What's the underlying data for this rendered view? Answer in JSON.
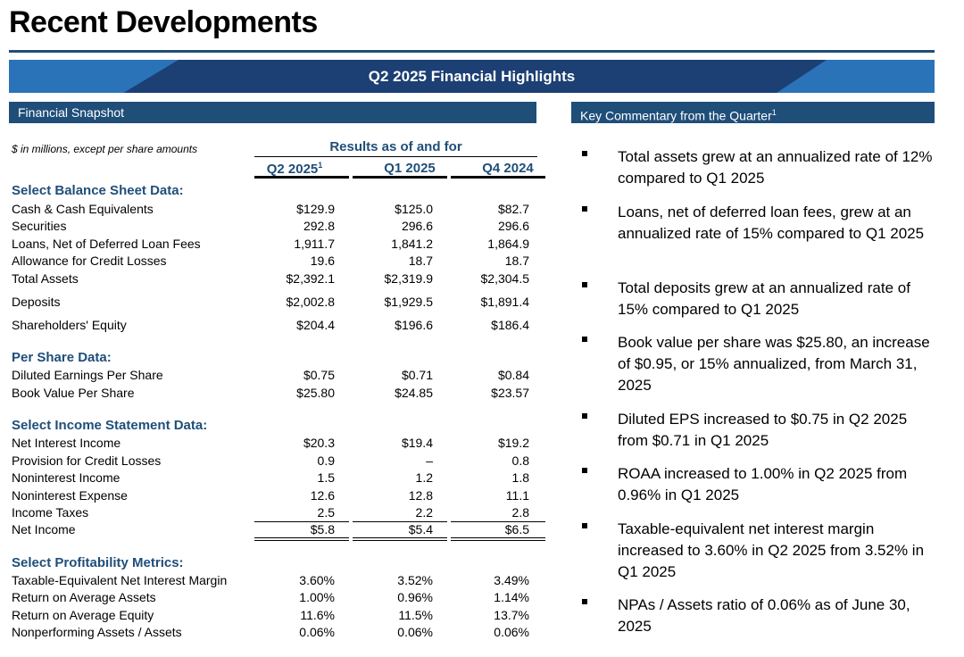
{
  "title": "Recent Developments",
  "banner": "Q2 2025 Financial Highlights",
  "snapshot_header": "Financial Snapshot",
  "commentary_header": "Key Commentary from the Quarter",
  "commentary_footnote": "1",
  "units_note": "$ in millions, except per share amounts",
  "results_header": "Results as of and for",
  "columns": [
    {
      "label": "Q2 2025",
      "footnote": "1"
    },
    {
      "label": "Q1 2025",
      "footnote": ""
    },
    {
      "label": "Q4 2024",
      "footnote": ""
    }
  ],
  "sections": {
    "balance": {
      "title": "Select Balance Sheet Data:",
      "rows": [
        {
          "label": "Cash & Cash Equivalents",
          "q2": "$129.9",
          "q1": "$125.0",
          "q4": "$82.7"
        },
        {
          "label": "Securities",
          "q2": "292.8",
          "q1": "296.6",
          "q4": "296.6"
        },
        {
          "label": "Loans, Net of Deferred Loan Fees",
          "q2": "1,911.7",
          "q1": "1,841.2",
          "q4": "1,864.9"
        },
        {
          "label": "Allowance for Credit Losses",
          "q2": "19.6",
          "q1": "18.7",
          "q4": "18.7"
        },
        {
          "label": "Total Assets",
          "q2": "$2,392.1",
          "q1": "$2,319.9",
          "q4": "$2,304.5"
        },
        {
          "label": "Deposits",
          "q2": "$2,002.8",
          "q1": "$1,929.5",
          "q4": "$1,891.4"
        },
        {
          "label": "Shareholders' Equity",
          "q2": "$204.4",
          "q1": "$196.6",
          "q4": "$186.4"
        }
      ]
    },
    "per_share": {
      "title": "Per Share Data:",
      "rows": [
        {
          "label": "Diluted Earnings Per Share",
          "q2": "$0.75",
          "q1": "$0.71",
          "q4": "$0.84"
        },
        {
          "label": "Book Value Per Share",
          "q2": "$25.80",
          "q1": "$24.85",
          "q4": "$23.57"
        }
      ]
    },
    "income": {
      "title": "Select Income Statement Data:",
      "rows": [
        {
          "label": "Net Interest Income",
          "q2": "$20.3",
          "q1": "$19.4",
          "q4": "$19.2"
        },
        {
          "label": "Provision for Credit Losses",
          "q2": "0.9",
          "q1": "–",
          "q4": "0.8"
        },
        {
          "label": "Noninterest Income",
          "q2": "1.5",
          "q1": "1.2",
          "q4": "1.8"
        },
        {
          "label": "Noninterest Expense",
          "q2": "12.6",
          "q1": "12.8",
          "q4": "11.1"
        },
        {
          "label": "Income Taxes",
          "q2": "2.5",
          "q1": "2.2",
          "q4": "2.8"
        },
        {
          "label": "Net Income",
          "q2": "$5.8",
          "q1": "$5.4",
          "q4": "$6.5"
        }
      ]
    },
    "profitability": {
      "title": "Select Profitability Metrics:",
      "rows": [
        {
          "label": "Taxable-Equivalent Net Interest Margin",
          "q2": "3.60%",
          "q1": "3.52%",
          "q4": "3.49%"
        },
        {
          "label": "Return on Average Assets",
          "q2": "1.00%",
          "q1": "0.96%",
          "q4": "1.14%"
        },
        {
          "label": "Return on Average Equity",
          "q2": "11.6%",
          "q1": "11.5%",
          "q4": "13.7%"
        },
        {
          "label": "Nonperforming Assets / Assets",
          "q2": "0.06%",
          "q1": "0.06%",
          "q4": "0.06%"
        }
      ]
    }
  },
  "commentary": [
    "Total assets grew at an annualized rate of 12% compared to Q1 2025",
    "Loans, net of deferred loan fees, grew at an annualized rate of 15% compared to Q1 2025",
    "Total deposits grew at an annualized rate of 15% compared to Q1 2025",
    "Book value per share was $25.80, an increase of $0.95, or 15% annualized, from March 31, 2025",
    "Diluted EPS increased to $0.75 in Q2 2025 from $0.71 in Q1 2025",
    "ROAA increased to 1.00% in Q2 2025 from 0.96% in Q1 2025",
    "Taxable-equivalent net interest margin increased to 3.60% in Q2 2025 from 3.52% in Q1 2025",
    "NPAs / Assets ratio of 0.06% as of June 30, 2025"
  ],
  "colors": {
    "navy": "#1f4e79",
    "banner_dark": "#1c3f74",
    "banner_light": "#2a73b8"
  }
}
